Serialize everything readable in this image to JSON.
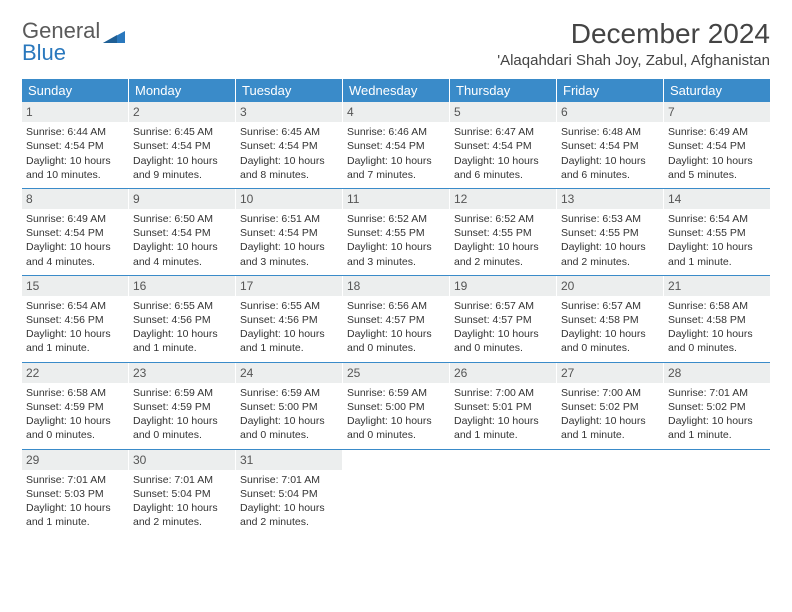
{
  "brand": {
    "part1": "General",
    "part2": "Blue"
  },
  "title": "December 2024",
  "location": "'Alaqahdari Shah Joy, Zabul, Afghanistan",
  "colors": {
    "header_bg": "#3a8bc9",
    "header_text": "#ffffff",
    "daynum_bg": "#eceeee",
    "rule": "#3a8bc9",
    "brand_blue": "#2a78bd",
    "brand_gray": "#5a5a5a",
    "body_text": "#333333",
    "page_bg": "#ffffff"
  },
  "typography": {
    "title_fontsize": 28,
    "location_fontsize": 15,
    "dow_fontsize": 13,
    "daynum_fontsize": 12,
    "body_fontsize": 10.5
  },
  "days_of_week": [
    "Sunday",
    "Monday",
    "Tuesday",
    "Wednesday",
    "Thursday",
    "Friday",
    "Saturday"
  ],
  "weeks": [
    [
      {
        "n": "1",
        "sunrise": "Sunrise: 6:44 AM",
        "sunset": "Sunset: 4:54 PM",
        "daylight": "Daylight: 10 hours and 10 minutes."
      },
      {
        "n": "2",
        "sunrise": "Sunrise: 6:45 AM",
        "sunset": "Sunset: 4:54 PM",
        "daylight": "Daylight: 10 hours and 9 minutes."
      },
      {
        "n": "3",
        "sunrise": "Sunrise: 6:45 AM",
        "sunset": "Sunset: 4:54 PM",
        "daylight": "Daylight: 10 hours and 8 minutes."
      },
      {
        "n": "4",
        "sunrise": "Sunrise: 6:46 AM",
        "sunset": "Sunset: 4:54 PM",
        "daylight": "Daylight: 10 hours and 7 minutes."
      },
      {
        "n": "5",
        "sunrise": "Sunrise: 6:47 AM",
        "sunset": "Sunset: 4:54 PM",
        "daylight": "Daylight: 10 hours and 6 minutes."
      },
      {
        "n": "6",
        "sunrise": "Sunrise: 6:48 AM",
        "sunset": "Sunset: 4:54 PM",
        "daylight": "Daylight: 10 hours and 6 minutes."
      },
      {
        "n": "7",
        "sunrise": "Sunrise: 6:49 AM",
        "sunset": "Sunset: 4:54 PM",
        "daylight": "Daylight: 10 hours and 5 minutes."
      }
    ],
    [
      {
        "n": "8",
        "sunrise": "Sunrise: 6:49 AM",
        "sunset": "Sunset: 4:54 PM",
        "daylight": "Daylight: 10 hours and 4 minutes."
      },
      {
        "n": "9",
        "sunrise": "Sunrise: 6:50 AM",
        "sunset": "Sunset: 4:54 PM",
        "daylight": "Daylight: 10 hours and 4 minutes."
      },
      {
        "n": "10",
        "sunrise": "Sunrise: 6:51 AM",
        "sunset": "Sunset: 4:54 PM",
        "daylight": "Daylight: 10 hours and 3 minutes."
      },
      {
        "n": "11",
        "sunrise": "Sunrise: 6:52 AM",
        "sunset": "Sunset: 4:55 PM",
        "daylight": "Daylight: 10 hours and 3 minutes."
      },
      {
        "n": "12",
        "sunrise": "Sunrise: 6:52 AM",
        "sunset": "Sunset: 4:55 PM",
        "daylight": "Daylight: 10 hours and 2 minutes."
      },
      {
        "n": "13",
        "sunrise": "Sunrise: 6:53 AM",
        "sunset": "Sunset: 4:55 PM",
        "daylight": "Daylight: 10 hours and 2 minutes."
      },
      {
        "n": "14",
        "sunrise": "Sunrise: 6:54 AM",
        "sunset": "Sunset: 4:55 PM",
        "daylight": "Daylight: 10 hours and 1 minute."
      }
    ],
    [
      {
        "n": "15",
        "sunrise": "Sunrise: 6:54 AM",
        "sunset": "Sunset: 4:56 PM",
        "daylight": "Daylight: 10 hours and 1 minute."
      },
      {
        "n": "16",
        "sunrise": "Sunrise: 6:55 AM",
        "sunset": "Sunset: 4:56 PM",
        "daylight": "Daylight: 10 hours and 1 minute."
      },
      {
        "n": "17",
        "sunrise": "Sunrise: 6:55 AM",
        "sunset": "Sunset: 4:56 PM",
        "daylight": "Daylight: 10 hours and 1 minute."
      },
      {
        "n": "18",
        "sunrise": "Sunrise: 6:56 AM",
        "sunset": "Sunset: 4:57 PM",
        "daylight": "Daylight: 10 hours and 0 minutes."
      },
      {
        "n": "19",
        "sunrise": "Sunrise: 6:57 AM",
        "sunset": "Sunset: 4:57 PM",
        "daylight": "Daylight: 10 hours and 0 minutes."
      },
      {
        "n": "20",
        "sunrise": "Sunrise: 6:57 AM",
        "sunset": "Sunset: 4:58 PM",
        "daylight": "Daylight: 10 hours and 0 minutes."
      },
      {
        "n": "21",
        "sunrise": "Sunrise: 6:58 AM",
        "sunset": "Sunset: 4:58 PM",
        "daylight": "Daylight: 10 hours and 0 minutes."
      }
    ],
    [
      {
        "n": "22",
        "sunrise": "Sunrise: 6:58 AM",
        "sunset": "Sunset: 4:59 PM",
        "daylight": "Daylight: 10 hours and 0 minutes."
      },
      {
        "n": "23",
        "sunrise": "Sunrise: 6:59 AM",
        "sunset": "Sunset: 4:59 PM",
        "daylight": "Daylight: 10 hours and 0 minutes."
      },
      {
        "n": "24",
        "sunrise": "Sunrise: 6:59 AM",
        "sunset": "Sunset: 5:00 PM",
        "daylight": "Daylight: 10 hours and 0 minutes."
      },
      {
        "n": "25",
        "sunrise": "Sunrise: 6:59 AM",
        "sunset": "Sunset: 5:00 PM",
        "daylight": "Daylight: 10 hours and 0 minutes."
      },
      {
        "n": "26",
        "sunrise": "Sunrise: 7:00 AM",
        "sunset": "Sunset: 5:01 PM",
        "daylight": "Daylight: 10 hours and 1 minute."
      },
      {
        "n": "27",
        "sunrise": "Sunrise: 7:00 AM",
        "sunset": "Sunset: 5:02 PM",
        "daylight": "Daylight: 10 hours and 1 minute."
      },
      {
        "n": "28",
        "sunrise": "Sunrise: 7:01 AM",
        "sunset": "Sunset: 5:02 PM",
        "daylight": "Daylight: 10 hours and 1 minute."
      }
    ],
    [
      {
        "n": "29",
        "sunrise": "Sunrise: 7:01 AM",
        "sunset": "Sunset: 5:03 PM",
        "daylight": "Daylight: 10 hours and 1 minute."
      },
      {
        "n": "30",
        "sunrise": "Sunrise: 7:01 AM",
        "sunset": "Sunset: 5:04 PM",
        "daylight": "Daylight: 10 hours and 2 minutes."
      },
      {
        "n": "31",
        "sunrise": "Sunrise: 7:01 AM",
        "sunset": "Sunset: 5:04 PM",
        "daylight": "Daylight: 10 hours and 2 minutes."
      },
      {
        "empty": true
      },
      {
        "empty": true
      },
      {
        "empty": true
      },
      {
        "empty": true
      }
    ]
  ]
}
